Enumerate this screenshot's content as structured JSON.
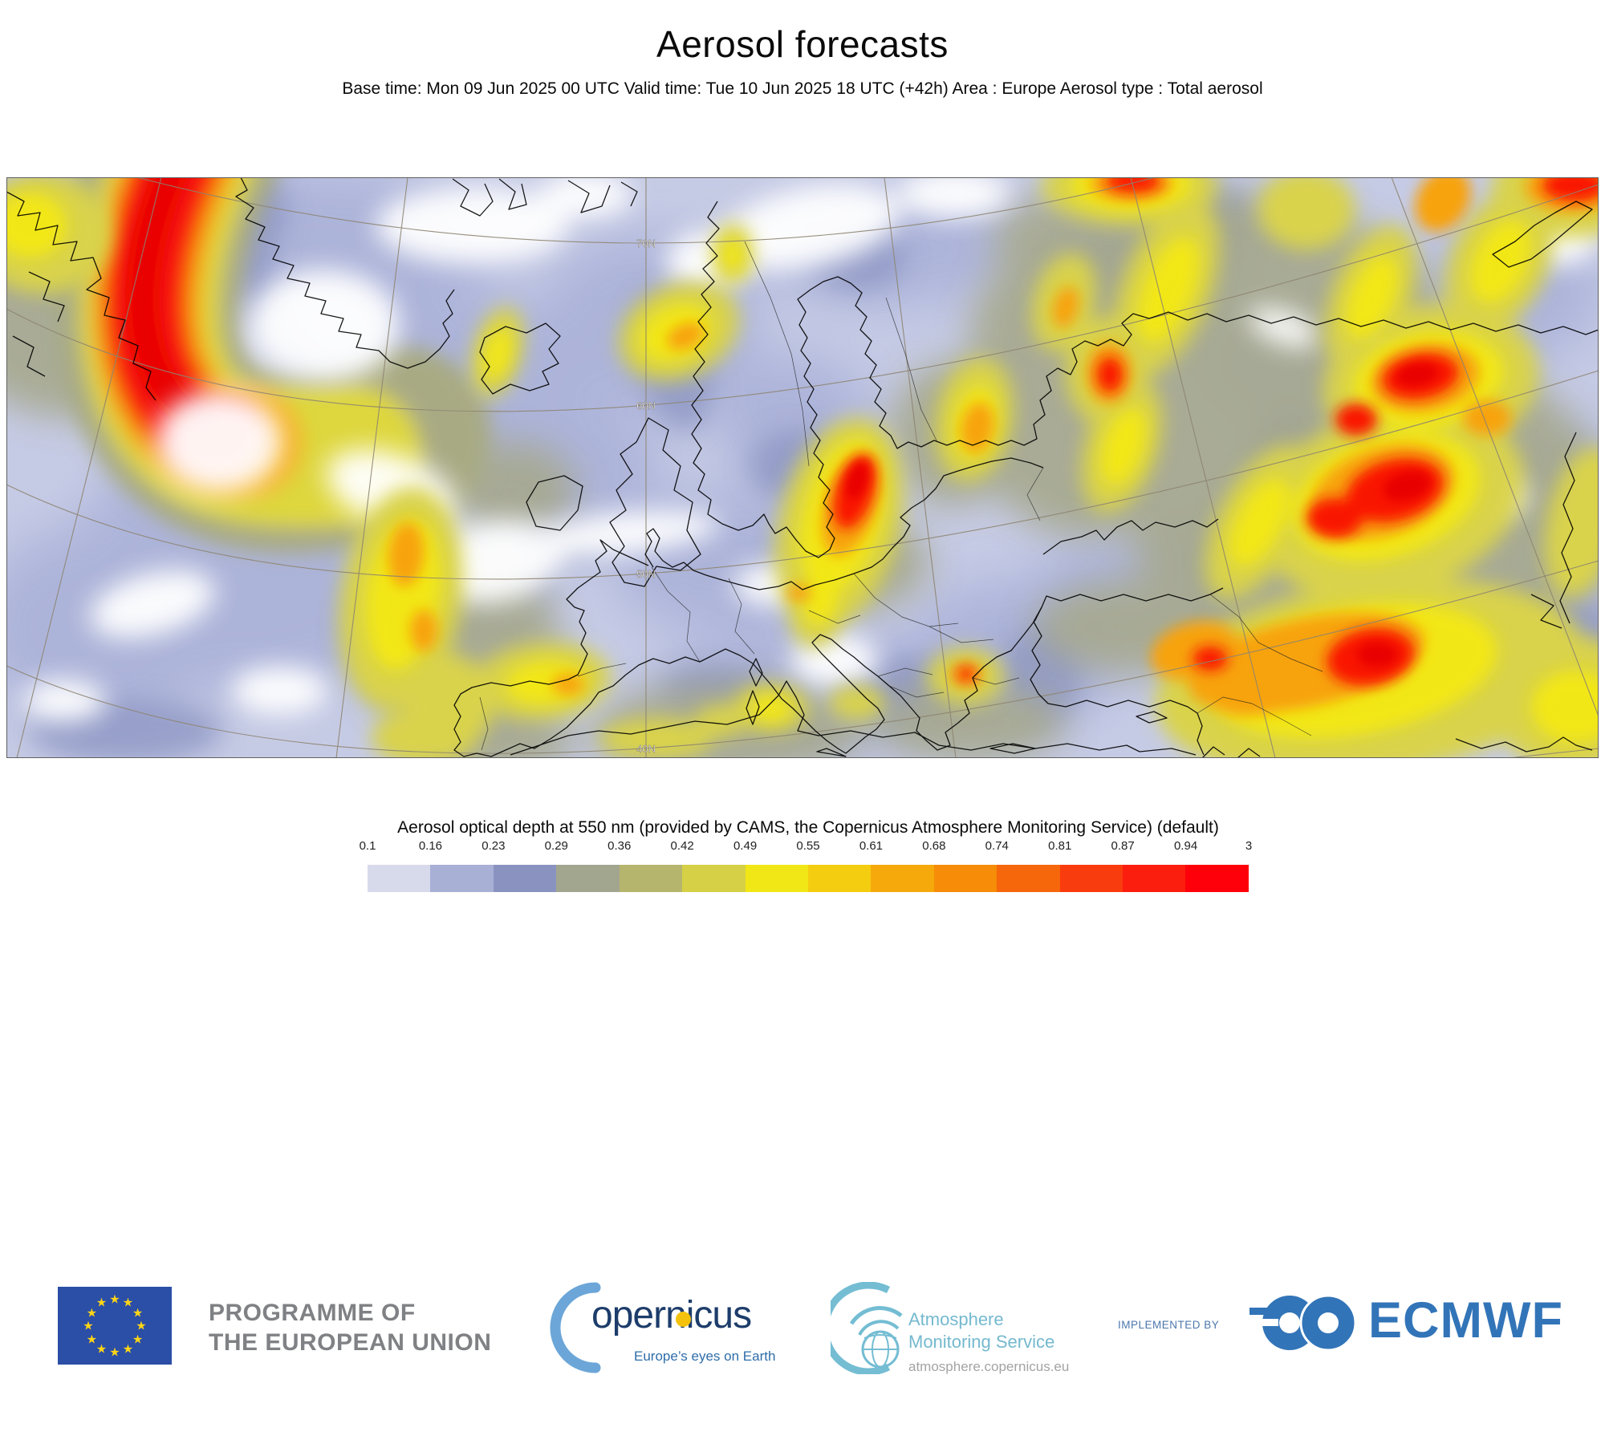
{
  "title": "Aerosol forecasts",
  "subtitle": "Base time: Mon 09 Jun 2025 00 UTC Valid time: Tue 10 Jun 2025 18 UTC (+42h) Area : Europe Aerosol type : Total aerosol",
  "map": {
    "grid_labels": [
      "70N",
      "60N",
      "50N",
      "40N"
    ]
  },
  "legend": {
    "title": "Aerosol optical depth at 550 nm (provided by CAMS, the Copernicus Atmosphere Monitoring Service) (default)",
    "ticks": [
      "0.1",
      "0.16",
      "0.23",
      "0.29",
      "0.36",
      "0.42",
      "0.49",
      "0.55",
      "0.61",
      "0.68",
      "0.74",
      "0.81",
      "0.87",
      "0.94",
      "3"
    ],
    "colors": [
      "#d7daeb",
      "#a9b0d6",
      "#8a93c0",
      "#a3a68f",
      "#b6b56d",
      "#d6d046",
      "#f2e716",
      "#f4cd10",
      "#f6a90b",
      "#f68c08",
      "#f6660a",
      "#f93c0e",
      "#fb1e0e",
      "#fd0009"
    ]
  },
  "chart_data": {
    "type": "heatmap",
    "title": "Aerosol forecasts",
    "variable": "Aerosol optical depth at 550 nm",
    "provider": "CAMS, the Copernicus Atmosphere Monitoring Service",
    "base_time": "Mon 09 Jun 2025 00 UTC",
    "valid_time": "Tue 10 Jun 2025 18 UTC (+42h)",
    "area": "Europe",
    "aerosol_type": "Total aerosol",
    "scale_breaks": [
      0.1,
      0.16,
      0.23,
      0.29,
      0.36,
      0.42,
      0.49,
      0.55,
      0.61,
      0.68,
      0.74,
      0.81,
      0.87,
      0.94,
      3
    ],
    "scale_colors": [
      "#d7daeb",
      "#a9b0d6",
      "#8a93c0",
      "#a3a68f",
      "#b6b56d",
      "#d6d046",
      "#f2e716",
      "#f4cd10",
      "#f6a90b",
      "#f68c08",
      "#f6660a",
      "#f93c0e",
      "#fb1e0e",
      "#fd0009"
    ],
    "latitude_gridlines": [
      "70N",
      "60N",
      "50N",
      "40N"
    ]
  },
  "footer": {
    "eu": {
      "line1": "PROGRAMME OF",
      "line2": "THE EUROPEAN UNION",
      "star_glyph": "★",
      "star_count": 12
    },
    "copernicus": {
      "wordmark": "opernicus",
      "tagline": "Europe’s eyes on Earth"
    },
    "ams": {
      "line1": "Atmosphere",
      "line2": "Monitoring Service",
      "url": "atmosphere.copernicus.eu"
    },
    "implemented_by": "IMPLEMENTED BY",
    "ecmwf": "ECMWF"
  }
}
